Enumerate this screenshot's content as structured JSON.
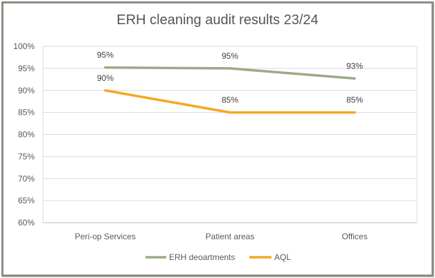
{
  "chart_data": {
    "type": "line",
    "title": "ERH cleaning audit results 23/24",
    "categories": [
      "Peri-op Services",
      "Patient areas",
      "Offices"
    ],
    "ylim": [
      0.6,
      1.0
    ],
    "yticks": [
      "60%",
      "65%",
      "70%",
      "75%",
      "80%",
      "85%",
      "90%",
      "95%",
      "100%"
    ],
    "grid": true,
    "legend_position": "bottom",
    "series": [
      {
        "name": "ERH deoartments",
        "color": "#9aab84",
        "values": [
          0.952,
          0.95,
          0.927
        ],
        "labels": [
          "95%",
          "95%",
          "93%"
        ]
      },
      {
        "name": "AQL",
        "color": "#f5a623",
        "values": [
          0.9,
          0.85,
          0.85
        ],
        "labels": [
          "90%",
          "85%",
          "85%"
        ]
      }
    ]
  }
}
